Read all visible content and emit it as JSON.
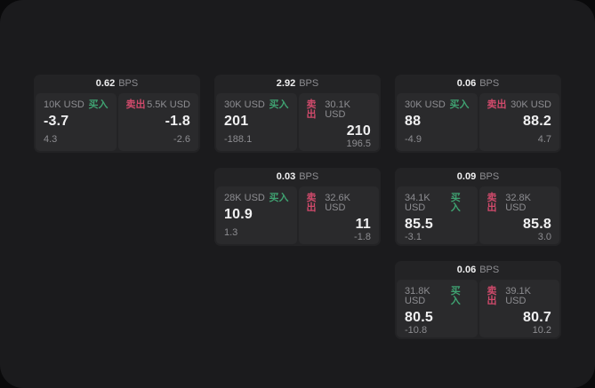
{
  "colors": {
    "page_bg": "#0a0a0b",
    "container_bg": "#1b1b1d",
    "card_bg": "#232325",
    "panel_bg": "#2a2a2c",
    "text_primary": "#f0f0f1",
    "text_muted": "#8d8d91",
    "buy_green": "#3fa171",
    "sell_red": "#cf4a6b"
  },
  "labels": {
    "bps_unit": "BPS",
    "buy": "买入",
    "sell": "卖出"
  },
  "cards": [
    {
      "bps": "0.62",
      "col": 1,
      "row": 1,
      "buy": {
        "amount": "10K USD",
        "price": "-3.7",
        "delta": "4.3"
      },
      "sell": {
        "amount": "5.5K USD",
        "price": "-1.8",
        "delta": "-2.6"
      }
    },
    {
      "bps": "2.92",
      "col": 2,
      "row": 1,
      "buy": {
        "amount": "30K USD",
        "price": "201",
        "delta": "-188.1"
      },
      "sell": {
        "amount": "30.1K USD",
        "price": "210",
        "delta": "196.5"
      }
    },
    {
      "bps": "0.06",
      "col": 3,
      "row": 1,
      "buy": {
        "amount": "30K USD",
        "price": "88",
        "delta": "-4.9"
      },
      "sell": {
        "amount": "30K USD",
        "price": "88.2",
        "delta": "4.7"
      }
    },
    {
      "bps": "0.03",
      "col": 2,
      "row": 2,
      "buy": {
        "amount": "28K USD",
        "price": "10.9",
        "delta": "1.3"
      },
      "sell": {
        "amount": "32.6K USD",
        "price": "11",
        "delta": "-1.8"
      }
    },
    {
      "bps": "0.09",
      "col": 3,
      "row": 2,
      "buy": {
        "amount": "34.1K USD",
        "price": "85.5",
        "delta": "-3.1"
      },
      "sell": {
        "amount": "32.8K USD",
        "price": "85.8",
        "delta": "3.0"
      }
    },
    {
      "bps": "0.06",
      "col": 3,
      "row": 3,
      "buy": {
        "amount": "31.8K USD",
        "price": "80.5",
        "delta": "-10.8"
      },
      "sell": {
        "amount": "39.1K USD",
        "price": "80.7",
        "delta": "10.2"
      }
    }
  ]
}
